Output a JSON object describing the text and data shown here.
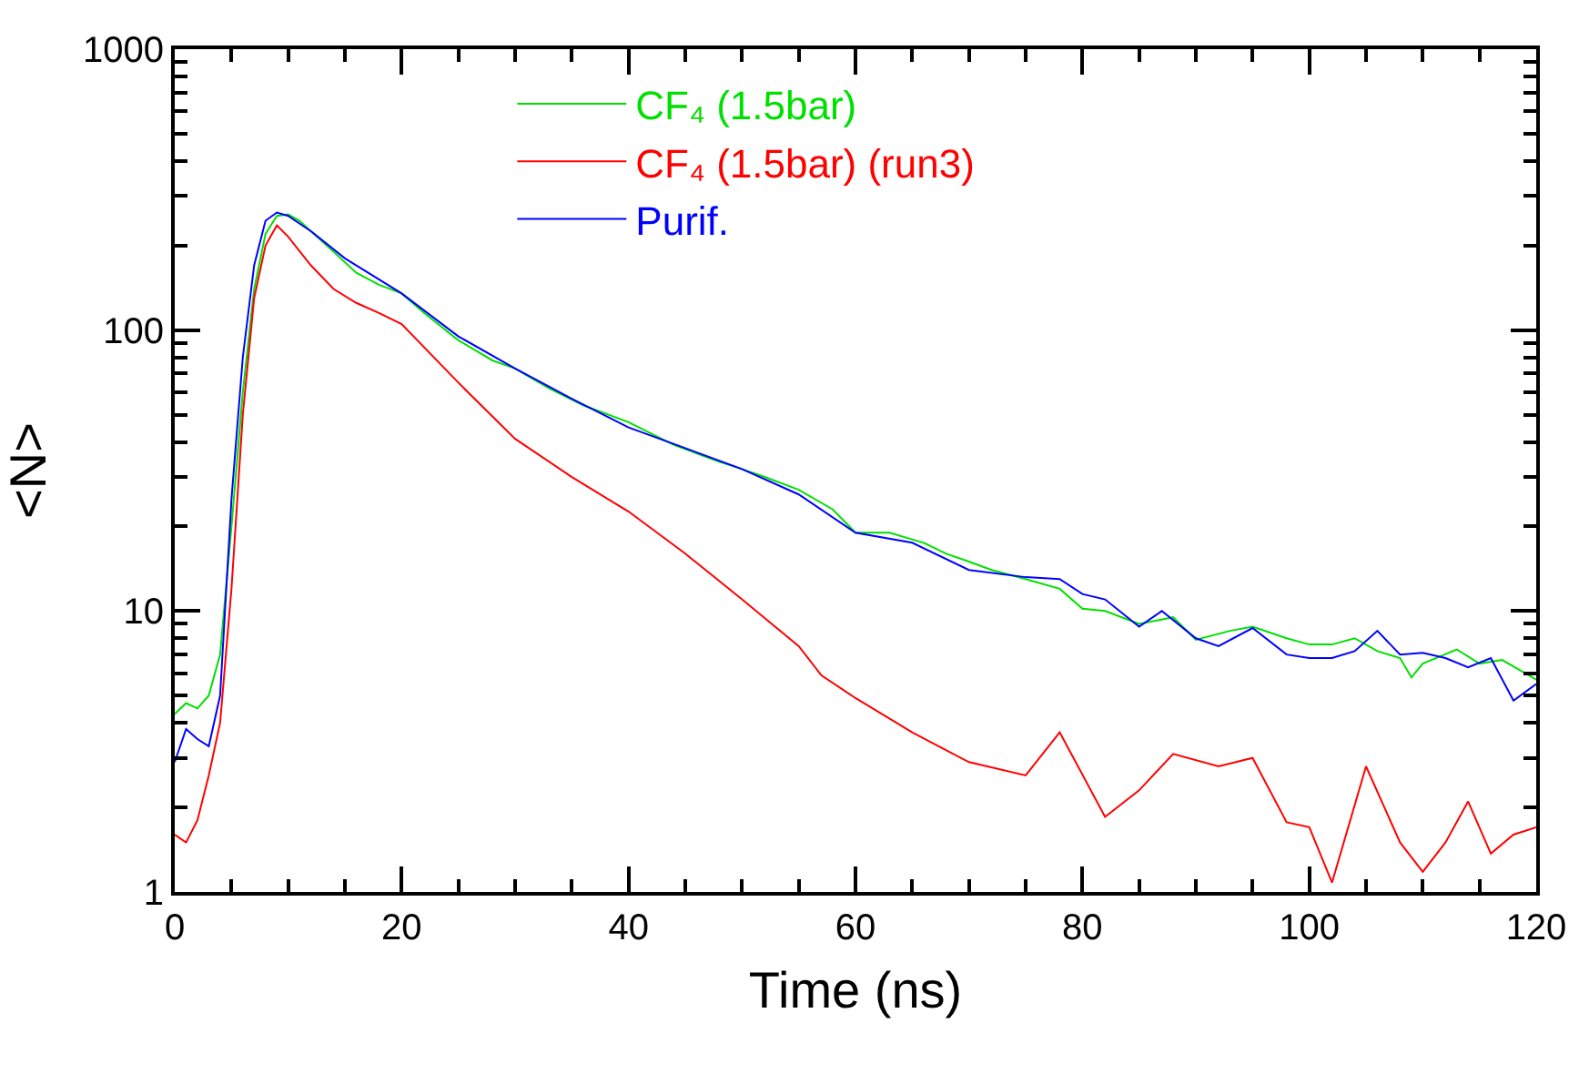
{
  "chart_data": {
    "type": "line",
    "xlabel": "Time (ns)",
    "ylabel": "<N>",
    "log": "y",
    "xlim": [
      0,
      120
    ],
    "xticks": [
      0,
      20,
      40,
      60,
      80,
      100,
      120
    ],
    "ylim": [
      1,
      1000
    ],
    "yticks": [
      1,
      10,
      100,
      1000
    ],
    "grid": false,
    "legend": "top",
    "marker": "none",
    "line_style": "solid",
    "series": [
      {
        "name": "CF₄ (1.5bar)",
        "color": "#00e000",
        "x": [
          0,
          1,
          2,
          3,
          4,
          5,
          6,
          7,
          8,
          9,
          10,
          11,
          12,
          14,
          16,
          18,
          20,
          22,
          25,
          28,
          30,
          33,
          36,
          40,
          44,
          48,
          50,
          52,
          55,
          58,
          60,
          63,
          66,
          68,
          70,
          72,
          75,
          78,
          80,
          82,
          85,
          88,
          90,
          93,
          95,
          98,
          100,
          102,
          104,
          106,
          108,
          109,
          110,
          113,
          115,
          117,
          120
        ],
        "values": [
          4.3,
          4.7,
          4.5,
          5,
          7,
          20,
          60,
          140,
          220,
          255,
          258,
          245,
          225,
          190,
          160,
          145,
          135,
          115,
          92,
          78,
          73,
          62,
          54,
          47,
          39,
          34,
          32,
          30,
          27,
          23,
          19,
          19,
          17.5,
          16,
          15,
          14,
          13,
          12,
          10.2,
          10,
          9,
          9.5,
          7.9,
          8.5,
          8.8,
          8,
          7.6,
          7.6,
          8,
          7.2,
          6.8,
          5.8,
          6.5,
          7.3,
          6.5,
          6.7,
          5.7
        ]
      },
      {
        "name": "CF₄ (1.5bar) (run3)",
        "color": "#ff0000",
        "x": [
          0,
          1,
          2,
          3,
          4,
          5,
          6,
          7,
          8,
          9,
          10,
          12,
          14,
          16,
          18,
          20,
          25,
          30,
          35,
          40,
          45,
          50,
          55,
          57,
          60,
          65,
          70,
          75,
          78,
          82,
          85,
          88,
          92,
          95,
          98,
          100,
          102,
          105,
          108,
          110,
          112,
          114,
          116,
          118,
          120
        ],
        "values": [
          1.6,
          1.5,
          1.8,
          2.6,
          4,
          12,
          50,
          130,
          200,
          236,
          215,
          170,
          140,
          125,
          115,
          105,
          65,
          41,
          30,
          22.6,
          16,
          11,
          7.5,
          5.9,
          4.9,
          3.7,
          2.9,
          2.6,
          3.7,
          1.85,
          2.3,
          3.1,
          2.8,
          3,
          1.77,
          1.7,
          1.08,
          2.8,
          1.5,
          1.18,
          1.5,
          2.1,
          1.37,
          1.6,
          1.7
        ]
      },
      {
        "name": "Purif.",
        "color": "#0000ff",
        "x": [
          0,
          1,
          2,
          3,
          4,
          5,
          6,
          7,
          8,
          9,
          10,
          12,
          15,
          20,
          25,
          30,
          35,
          40,
          45,
          50,
          55,
          60,
          65,
          70,
          75,
          78,
          80,
          82,
          85,
          87,
          90,
          92,
          95,
          98,
          100,
          102,
          104,
          106,
          108,
          110,
          112,
          114,
          116,
          118,
          120
        ],
        "values": [
          2.9,
          3.8,
          3.5,
          3.3,
          5,
          25,
          80,
          170,
          245,
          262,
          255,
          225,
          180,
          135,
          95,
          73,
          57,
          45,
          38,
          32,
          26,
          19,
          17.5,
          14,
          13.2,
          13,
          11.5,
          11,
          8.8,
          10,
          8,
          7.5,
          8.7,
          7,
          6.8,
          6.8,
          7.2,
          8.5,
          7,
          7.1,
          6.8,
          6.3,
          6.8,
          4.8,
          5.5
        ]
      }
    ]
  }
}
